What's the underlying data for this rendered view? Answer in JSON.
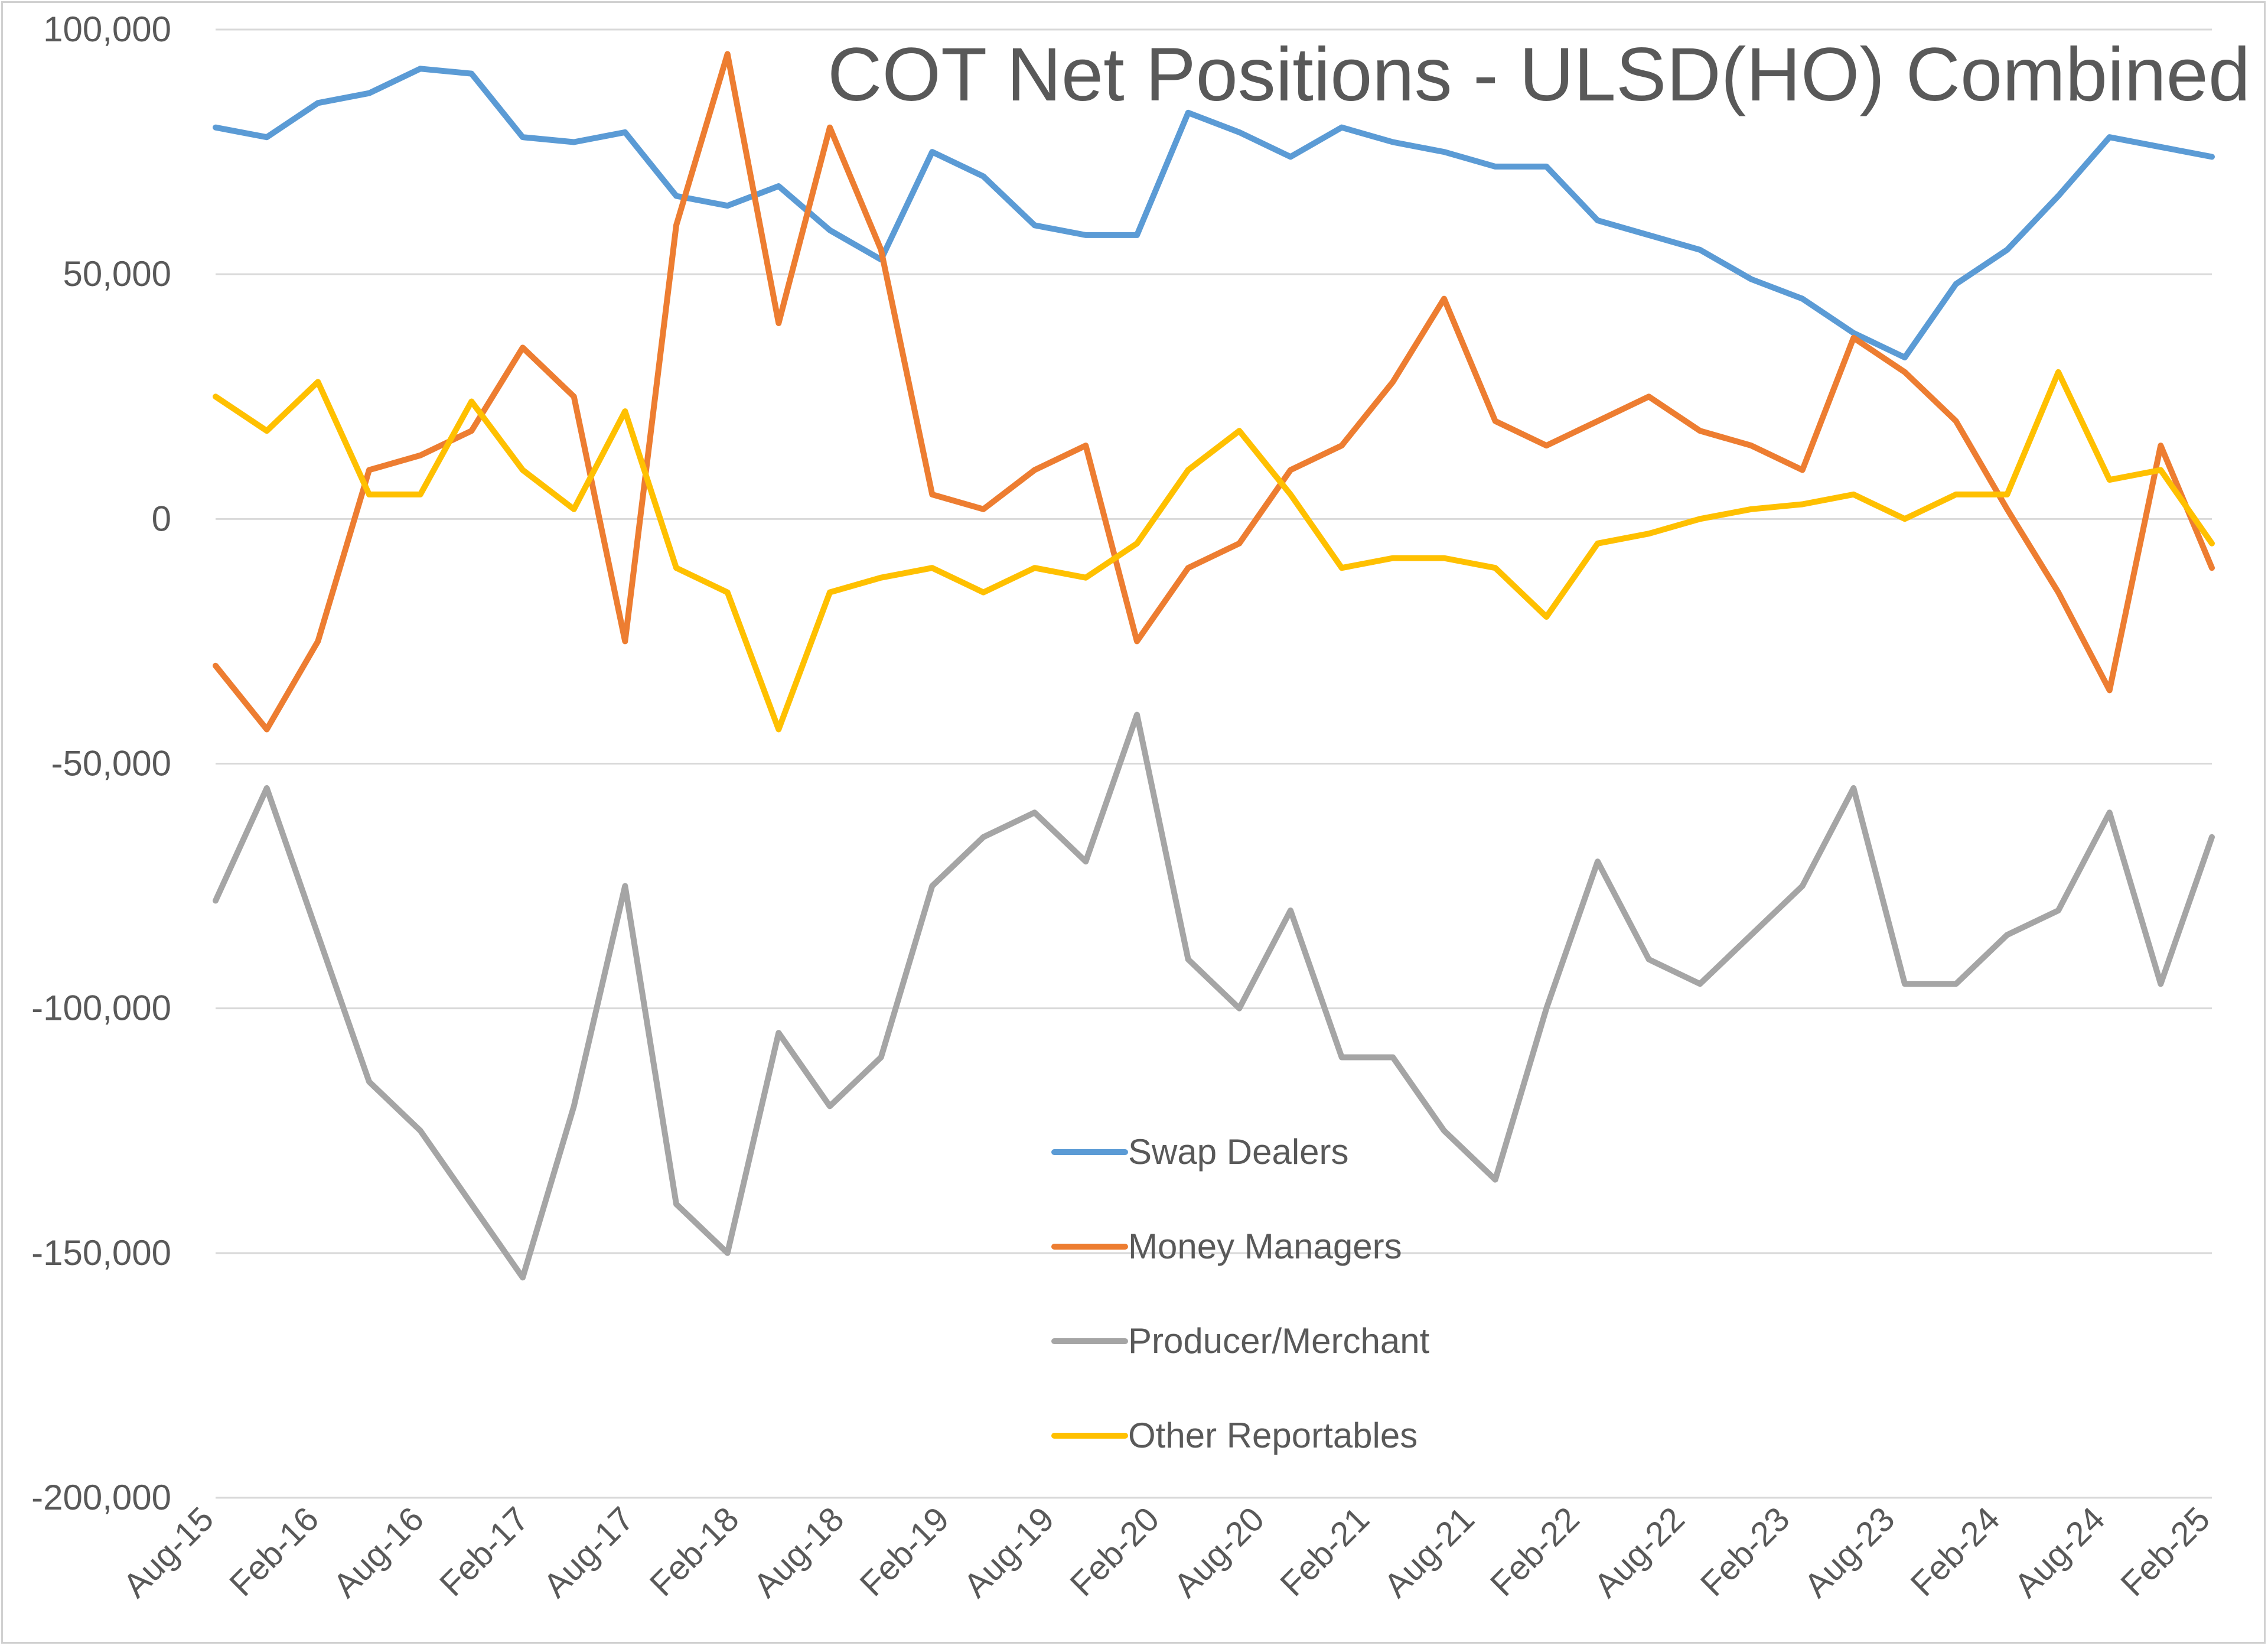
{
  "chart_data": {
    "type": "line",
    "title": "COT Net Positions - ULSD(HO) Combined",
    "xlabel": "",
    "ylabel": "",
    "ylim": [
      -200000,
      100000
    ],
    "grid": true,
    "legend_placement": "center-bottom",
    "y_tick_values": [
      100000,
      50000,
      0,
      -50000,
      -100000,
      -150000,
      -200000
    ],
    "y_tick_labels": [
      "100,000",
      "50,000",
      "0",
      "-50,000",
      "-100,000",
      "-150,000",
      "-200,000"
    ],
    "x_tick_labels": [
      "Aug-15",
      "Feb-16",
      "Aug-16",
      "Feb-17",
      "Aug-17",
      "Feb-18",
      "Aug-18",
      "Feb-19",
      "Aug-19",
      "Feb-20",
      "Aug-20",
      "Feb-21",
      "Aug-21",
      "Feb-22",
      "Aug-22",
      "Feb-23",
      "Aug-23",
      "Feb-24",
      "Aug-24",
      "Feb-25"
    ],
    "x": [
      "Aug-15",
      "Nov-15",
      "Feb-16",
      "May-16",
      "Aug-16",
      "Nov-16",
      "Feb-17",
      "May-17",
      "Aug-17",
      "Nov-17",
      "Feb-18",
      "May-18",
      "Aug-18",
      "Nov-18",
      "Feb-19",
      "May-19",
      "Aug-19",
      "Nov-19",
      "Feb-20",
      "May-20",
      "Aug-20",
      "Nov-20",
      "Feb-21",
      "May-21",
      "Aug-21",
      "Nov-21",
      "Feb-22",
      "May-22",
      "Aug-22",
      "Nov-22",
      "Feb-23",
      "May-23",
      "Aug-23",
      "Nov-23",
      "Feb-24",
      "May-24",
      "Aug-24",
      "Nov-24",
      "Feb-25",
      "Mar-25"
    ],
    "series": [
      {
        "name": "Swap Dealers",
        "color": "#5b9bd5",
        "values": [
          80000,
          78000,
          85000,
          87000,
          92000,
          91000,
          78000,
          77000,
          79000,
          66000,
          64000,
          68000,
          59000,
          53000,
          75000,
          70000,
          60000,
          58000,
          58000,
          83000,
          79000,
          74000,
          80000,
          77000,
          75000,
          72000,
          72000,
          61000,
          58000,
          55000,
          49000,
          45000,
          38000,
          33000,
          48000,
          55000,
          66000,
          78000,
          76000,
          74000
        ]
      },
      {
        "name": "Money Managers",
        "color": "#ed7d31",
        "values": [
          -30000,
          -43000,
          -25000,
          10000,
          13000,
          18000,
          35000,
          25000,
          -25000,
          60000,
          95000,
          40000,
          80000,
          55000,
          5000,
          2000,
          10000,
          15000,
          -25000,
          -10000,
          -5000,
          10000,
          15000,
          28000,
          45000,
          20000,
          15000,
          20000,
          25000,
          18000,
          15000,
          10000,
          37000,
          30000,
          20000,
          2000,
          -15000,
          -35000,
          15000,
          -10000
        ]
      },
      {
        "name": "Producer/Merchant",
        "color": "#a5a5a5",
        "values": [
          -78000,
          -55000,
          -85000,
          -115000,
          -125000,
          -140000,
          -155000,
          -120000,
          -75000,
          -140000,
          -150000,
          -105000,
          -120000,
          -110000,
          -75000,
          -65000,
          -60000,
          -70000,
          -40000,
          -90000,
          -100000,
          -80000,
          -110000,
          -110000,
          -125000,
          -135000,
          -100000,
          -70000,
          -90000,
          -95000,
          -85000,
          -75000,
          -55000,
          -95000,
          -95000,
          -85000,
          -80000,
          -60000,
          -95000,
          -65000
        ]
      },
      {
        "name": "Other Reportables",
        "color": "#ffc000",
        "values": [
          25000,
          18000,
          28000,
          5000,
          5000,
          24000,
          10000,
          2000,
          22000,
          -10000,
          -15000,
          -43000,
          -15000,
          -12000,
          -10000,
          -15000,
          -10000,
          -12000,
          -5000,
          10000,
          18000,
          5000,
          -10000,
          -8000,
          -8000,
          -10000,
          -20000,
          -5000,
          -3000,
          0,
          2000,
          3000,
          5000,
          0,
          5000,
          5000,
          30000,
          8000,
          10000,
          -5000
        ]
      }
    ]
  }
}
